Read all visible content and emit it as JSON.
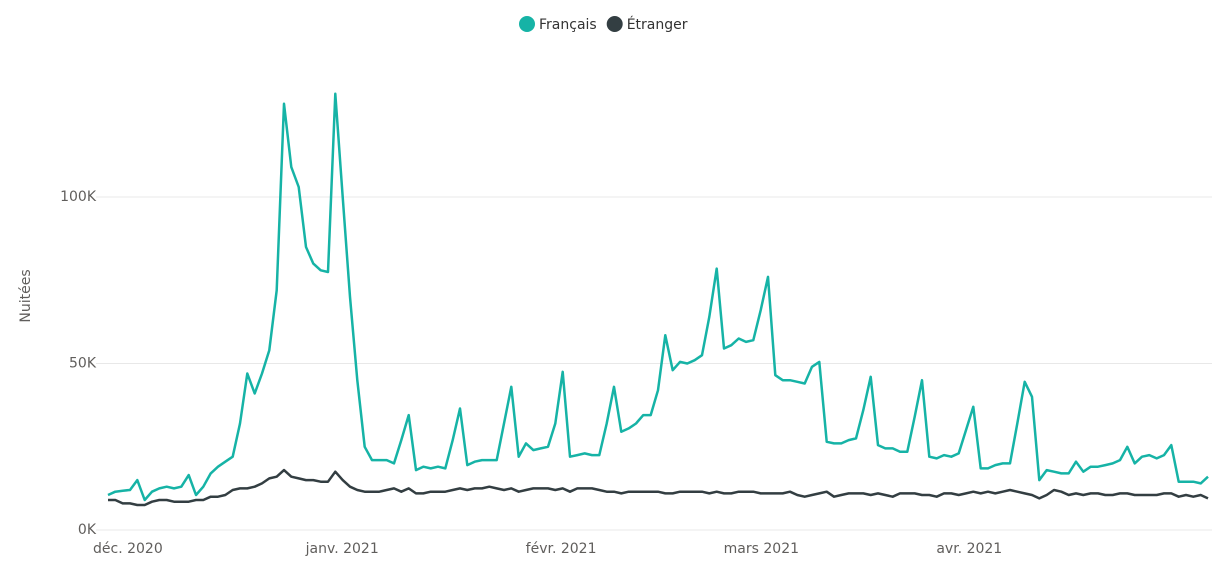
{
  "chart_data": {
    "type": "line",
    "y_label": "Nuitées",
    "categories": [
      "déc. 2020",
      null,
      null,
      null,
      null,
      null,
      null,
      null,
      null,
      null,
      null,
      null,
      null,
      null,
      null,
      null,
      null,
      null,
      null,
      null,
      null,
      null,
      null,
      null,
      null,
      null,
      null,
      null,
      null,
      "janv. 2021",
      null,
      null,
      null,
      null,
      null,
      null,
      null,
      null,
      null,
      null,
      null,
      null,
      null,
      null,
      null,
      null,
      null,
      null,
      null,
      null,
      null,
      null,
      null,
      null,
      null,
      null,
      null,
      null,
      null,
      "févr. 2021",
      null,
      null,
      null,
      null,
      null,
      null,
      null,
      null,
      null,
      null,
      null,
      null,
      null,
      null,
      null,
      null,
      null,
      null,
      null,
      null,
      null,
      null,
      null,
      null,
      null,
      null,
      "mars 2021",
      null,
      null,
      null,
      null,
      null,
      null,
      null,
      null,
      null,
      null,
      null,
      null,
      null,
      null,
      null,
      null,
      null,
      null,
      null,
      null,
      null,
      null,
      null,
      null,
      null,
      null,
      null,
      null,
      "avr. 2021",
      null,
      null,
      null,
      null,
      null,
      null,
      null,
      null,
      null,
      null,
      null,
      null,
      null,
      null,
      null,
      null,
      null,
      null,
      null,
      null,
      null,
      null,
      null,
      null,
      null,
      null,
      null,
      null,
      null,
      null,
      null,
      null,
      null,
      null,
      null
    ],
    "series": [
      {
        "name": "Français",
        "color": "#16b3a6",
        "values": [
          10500,
          11500,
          11800,
          12000,
          15000,
          9000,
          11500,
          12500,
          13000,
          12500,
          13000,
          16500,
          10500,
          13000,
          17000,
          19000,
          20500,
          22000,
          32000,
          47000,
          41000,
          47000,
          54000,
          72000,
          128000,
          109000,
          103000,
          85000,
          80000,
          78000,
          77500,
          131000,
          100000,
          70000,
          45000,
          25000,
          21000,
          21000,
          21000,
          20000,
          27000,
          34500,
          18000,
          19000,
          18500,
          19000,
          18500,
          27000,
          36500,
          19500,
          20500,
          21000,
          21000,
          21000,
          32000,
          43000,
          22000,
          26000,
          24000,
          24500,
          25000,
          32000,
          47500,
          22000,
          22500,
          23000,
          22500,
          22500,
          32000,
          43000,
          29500,
          30500,
          32000,
          34500,
          34500,
          42000,
          58500,
          48000,
          50500,
          50000,
          51000,
          52500,
          64000,
          78500,
          54500,
          55500,
          57500,
          56500,
          57000,
          66000,
          76000,
          46500,
          45000,
          45000,
          44500,
          44000,
          49000,
          50500,
          26500,
          26000,
          26000,
          27000,
          27500,
          36000,
          46000,
          25500,
          24500,
          24500,
          23500,
          23500,
          34000,
          45000,
          22000,
          21500,
          22500,
          22000,
          23000,
          30000,
          37000,
          18500,
          18500,
          19500,
          20000,
          20000,
          32000,
          44500,
          40000,
          15000,
          18000,
          17500,
          17000,
          17000,
          20500,
          17500,
          19000,
          19000,
          19500,
          20000,
          21000,
          25000,
          20000,
          22000,
          22500,
          21500,
          22500,
          25500,
          14500,
          14500,
          14500,
          14000,
          16000
        ]
      },
      {
        "name": "Étranger",
        "color": "#333e42",
        "values": [
          9000,
          9000,
          8000,
          8000,
          7500,
          7500,
          8500,
          9000,
          9000,
          8500,
          8500,
          8500,
          9000,
          9000,
          10000,
          10000,
          10500,
          12000,
          12500,
          12500,
          13000,
          14000,
          15500,
          16000,
          18000,
          16000,
          15500,
          15000,
          15000,
          14500,
          14500,
          17500,
          15000,
          13000,
          12000,
          11500,
          11500,
          11500,
          12000,
          12500,
          11500,
          12500,
          11000,
          11000,
          11500,
          11500,
          11500,
          12000,
          12500,
          12000,
          12500,
          12500,
          13000,
          12500,
          12000,
          12500,
          11500,
          12000,
          12500,
          12500,
          12500,
          12000,
          12500,
          11500,
          12500,
          12500,
          12500,
          12000,
          11500,
          11500,
          11000,
          11500,
          11500,
          11500,
          11500,
          11500,
          11000,
          11000,
          11500,
          11500,
          11500,
          11500,
          11000,
          11500,
          11000,
          11000,
          11500,
          11500,
          11500,
          11000,
          11000,
          11000,
          11000,
          11500,
          10500,
          10000,
          10500,
          11000,
          11500,
          10000,
          10500,
          11000,
          11000,
          11000,
          10500,
          11000,
          10500,
          10000,
          11000,
          11000,
          11000,
          10500,
          10500,
          10000,
          11000,
          11000,
          10500,
          11000,
          11500,
          11000,
          11500,
          11000,
          11500,
          12000,
          11500,
          11000,
          10500,
          9500,
          10500,
          12000,
          11500,
          10500,
          11000,
          10500,
          11000,
          11000,
          10500,
          10500,
          11000,
          11000,
          10500,
          10500,
          10500,
          10500,
          11000,
          11000,
          10000,
          10500,
          10000,
          10500,
          9500
        ]
      }
    ],
    "ylim": [
      0,
      135000
    ],
    "yticks": [
      {
        "value": 0,
        "label": "0K"
      },
      {
        "value": 50000,
        "label": "50K"
      },
      {
        "value": 100000,
        "label": "100K"
      }
    ],
    "grid": true,
    "legend": "top"
  }
}
